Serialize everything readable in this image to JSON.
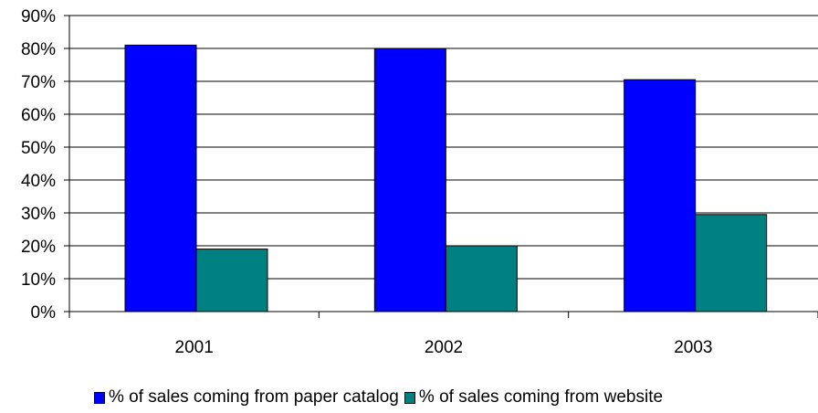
{
  "chart_data": {
    "type": "bar",
    "categories": [
      "2001",
      "2002",
      "2003"
    ],
    "series": [
      {
        "name": "% of sales coming from paper catalog",
        "color": "#0000ff",
        "values": [
          81,
          80,
          70.5
        ]
      },
      {
        "name": "% of sales coming from website",
        "color": "#008080",
        "values": [
          19,
          20,
          29.5
        ]
      }
    ],
    "y_ticks": [
      "0%",
      "10%",
      "20%",
      "30%",
      "40%",
      "50%",
      "60%",
      "70%",
      "80%",
      "90%"
    ],
    "ylim": [
      0,
      90
    ],
    "grid": true,
    "legend_position": "bottom"
  }
}
